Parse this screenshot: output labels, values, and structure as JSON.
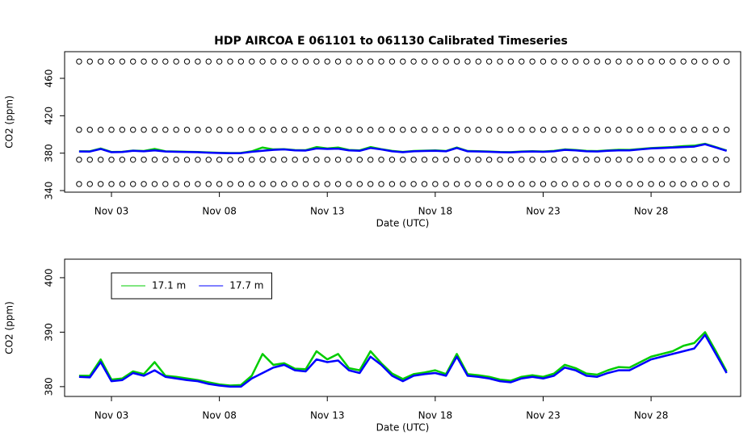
{
  "chart_data": [
    {
      "type": "scatter-line",
      "title": "HDP   AIRCOA  E   061101  to  061130   Calibrated Timeseries",
      "x_label": "Date (UTC)",
      "y_label": "CO2 (ppm)",
      "xlim": [
        0.83,
        32.15
      ],
      "ylim": [
        338.3,
        488.5
      ],
      "xticks": [
        {
          "value": 3,
          "label": "Nov 03"
        },
        {
          "value": 8,
          "label": "Nov 08"
        },
        {
          "value": 13,
          "label": "Nov 13"
        },
        {
          "value": 18,
          "label": "Nov 18"
        },
        {
          "value": 23,
          "label": "Nov 23"
        },
        {
          "value": 28,
          "label": "Nov 28"
        }
      ],
      "yticks": [
        340,
        380,
        420,
        460
      ],
      "x": [
        1.5,
        2,
        2.5,
        3,
        3.5,
        4,
        4.5,
        5,
        5.5,
        6,
        6.5,
        7,
        7.5,
        8,
        8.5,
        9,
        9.5,
        10,
        10.5,
        11,
        11.5,
        12,
        12.5,
        13,
        13.5,
        14,
        14.5,
        15,
        15.5,
        16,
        16.5,
        17,
        17.5,
        18,
        18.5,
        19,
        19.5,
        20,
        20.5,
        21,
        21.5,
        22,
        22.5,
        23,
        23.5,
        24,
        24.5,
        25,
        25.5,
        26,
        26.5,
        27,
        27.5,
        28,
        28.5,
        29,
        29.5,
        30,
        30.5,
        31,
        31.5
      ],
      "series": [
        {
          "marker": "circle",
          "color": "#000000",
          "values": [
            478,
            478,
            478,
            478,
            478,
            478,
            478,
            478,
            478,
            478,
            478,
            478,
            478,
            478,
            478,
            478,
            478,
            478,
            478,
            478,
            478,
            478,
            478,
            478,
            478,
            478,
            478,
            478,
            478,
            478,
            478,
            478,
            478,
            478,
            478,
            478,
            478,
            478,
            478,
            478,
            478,
            478,
            478,
            478,
            478,
            478,
            478,
            478,
            478,
            478,
            478,
            478,
            478,
            478,
            478,
            478,
            478,
            478,
            478,
            478,
            478
          ]
        },
        {
          "marker": "circle",
          "color": "#000000",
          "values": [
            405,
            405,
            405,
            405,
            405,
            405,
            405,
            405,
            405,
            405,
            405,
            405,
            405,
            405,
            405,
            405,
            405,
            405,
            405,
            405,
            405,
            405,
            405,
            405,
            405,
            405,
            405,
            405,
            405,
            405,
            405,
            405,
            405,
            405,
            405,
            405,
            405,
            405,
            405,
            405,
            405,
            405,
            405,
            405,
            405,
            405,
            405,
            405,
            405,
            405,
            405,
            405,
            405,
            405,
            405,
            405,
            405,
            405,
            405,
            405,
            405
          ]
        },
        {
          "marker": "circle",
          "color": "#000000",
          "values": [
            373,
            373,
            373,
            373,
            373,
            373,
            373,
            373,
            373,
            373,
            373,
            373,
            373,
            373,
            373,
            373,
            373,
            373,
            373,
            373,
            373,
            373,
            373,
            373,
            373,
            373,
            373,
            373,
            373,
            373,
            373,
            373,
            373,
            373,
            373,
            373,
            373,
            373,
            373,
            373,
            373,
            373,
            373,
            373,
            373,
            373,
            373,
            373,
            373,
            373,
            373,
            373,
            373,
            373,
            373,
            373,
            373,
            373,
            373,
            373,
            373
          ]
        },
        {
          "marker": "circle",
          "color": "#000000",
          "values": [
            347,
            347,
            347,
            347,
            347,
            347,
            347,
            347,
            347,
            347,
            347,
            347,
            347,
            347,
            347,
            347,
            347,
            347,
            347,
            347,
            347,
            347,
            347,
            347,
            347,
            347,
            347,
            347,
            347,
            347,
            347,
            347,
            347,
            347,
            347,
            347,
            347,
            347,
            347,
            347,
            347,
            347,
            347,
            347,
            347,
            347,
            347,
            347,
            347,
            347,
            347,
            347,
            347,
            347,
            347,
            347,
            347,
            347,
            347,
            347,
            347
          ]
        },
        {
          "marker": "line",
          "color": "#00cc00",
          "values": [
            382,
            382,
            385,
            381.3,
            381.5,
            382.8,
            382.3,
            384.5,
            382,
            381.8,
            381.5,
            381.2,
            380.8,
            380.4,
            380.2,
            380.3,
            382,
            386,
            384,
            384.3,
            383.3,
            383.2,
            386.5,
            385,
            386,
            383.4,
            383,
            386.5,
            384.3,
            382.4,
            381.4,
            382.3,
            382.6,
            383,
            382.3,
            386,
            382.3,
            382.1,
            381.8,
            381.3,
            381.1,
            381.8,
            382.1,
            381.8,
            382.4,
            384,
            383.4,
            382.4,
            382.2,
            383,
            383.6,
            383.5,
            384.5,
            385.5,
            386,
            386.5,
            387.5,
            388,
            390,
            386.5,
            382.8
          ]
        },
        {
          "marker": "line",
          "color": "#0000ff",
          "values": [
            381.8,
            381.7,
            384.5,
            381,
            381.2,
            382.5,
            382,
            383,
            381.8,
            381.5,
            381.2,
            381,
            380.5,
            380.2,
            380,
            380,
            381.5,
            382.5,
            383.5,
            384,
            383,
            382.8,
            385,
            384.5,
            384.8,
            383,
            382.5,
            385.5,
            384,
            382,
            381,
            382,
            382.3,
            382.5,
            382,
            385.5,
            382,
            381.8,
            381.5,
            381,
            380.8,
            381.5,
            381.8,
            381.5,
            382,
            383.5,
            383,
            382,
            381.8,
            382.5,
            383,
            383,
            384,
            385,
            385.5,
            386,
            386.5,
            387,
            389.5,
            386,
            382.5
          ]
        }
      ]
    },
    {
      "type": "line",
      "x_label": "Date (UTC)",
      "y_label": "CO2 (ppm)",
      "xlim": [
        0.83,
        32.15
      ],
      "ylim": [
        378.2,
        403.4
      ],
      "xticks": [
        {
          "value": 3,
          "label": "Nov 03"
        },
        {
          "value": 8,
          "label": "Nov 08"
        },
        {
          "value": 13,
          "label": "Nov 13"
        },
        {
          "value": 18,
          "label": "Nov 18"
        },
        {
          "value": 23,
          "label": "Nov 23"
        },
        {
          "value": 28,
          "label": "Nov 28"
        }
      ],
      "yticks": [
        380,
        390,
        400
      ],
      "legend": "top-left",
      "x": [
        1.5,
        2,
        2.5,
        3,
        3.5,
        4,
        4.5,
        5,
        5.5,
        6,
        6.5,
        7,
        7.5,
        8,
        8.5,
        9,
        9.5,
        10,
        10.5,
        11,
        11.5,
        12,
        12.5,
        13,
        13.5,
        14,
        14.5,
        15,
        15.5,
        16,
        16.5,
        17,
        17.5,
        18,
        18.5,
        19,
        19.5,
        20,
        20.5,
        21,
        21.5,
        22,
        22.5,
        23,
        23.5,
        24,
        24.5,
        25,
        25.5,
        26,
        26.5,
        27,
        27.5,
        28,
        28.5,
        29,
        29.5,
        30,
        30.5,
        31,
        31.5
      ],
      "series": [
        {
          "name": "17.1 m",
          "color": "#00cc00",
          "values": [
            382,
            382,
            385,
            381.3,
            381.5,
            382.8,
            382.3,
            384.5,
            382,
            381.8,
            381.5,
            381.2,
            380.8,
            380.4,
            380.2,
            380.3,
            382,
            386,
            384,
            384.3,
            383.3,
            383.2,
            386.5,
            385,
            386,
            383.4,
            383,
            386.5,
            384.3,
            382.4,
            381.4,
            382.3,
            382.6,
            383,
            382.3,
            386,
            382.3,
            382.1,
            381.8,
            381.3,
            381.1,
            381.8,
            382.1,
            381.8,
            382.4,
            384,
            383.4,
            382.4,
            382.2,
            383,
            383.6,
            383.5,
            384.5,
            385.5,
            386,
            386.5,
            387.5,
            388,
            390,
            386.5,
            382.8
          ]
        },
        {
          "name": "17.7 m",
          "color": "#0000ff",
          "values": [
            381.8,
            381.7,
            384.5,
            381,
            381.2,
            382.5,
            382,
            383,
            381.8,
            381.5,
            381.2,
            381,
            380.5,
            380.2,
            380,
            380,
            381.5,
            382.5,
            383.5,
            384,
            383,
            382.8,
            385,
            384.5,
            384.8,
            383,
            382.5,
            385.5,
            384,
            382,
            381,
            382,
            382.3,
            382.5,
            382,
            385.5,
            382,
            381.8,
            381.5,
            381,
            380.8,
            381.5,
            381.8,
            381.5,
            382,
            383.5,
            383,
            382,
            381.8,
            382.5,
            383,
            383,
            384,
            385,
            385.5,
            386,
            386.5,
            387,
            389.5,
            386,
            382.5
          ]
        }
      ]
    }
  ]
}
